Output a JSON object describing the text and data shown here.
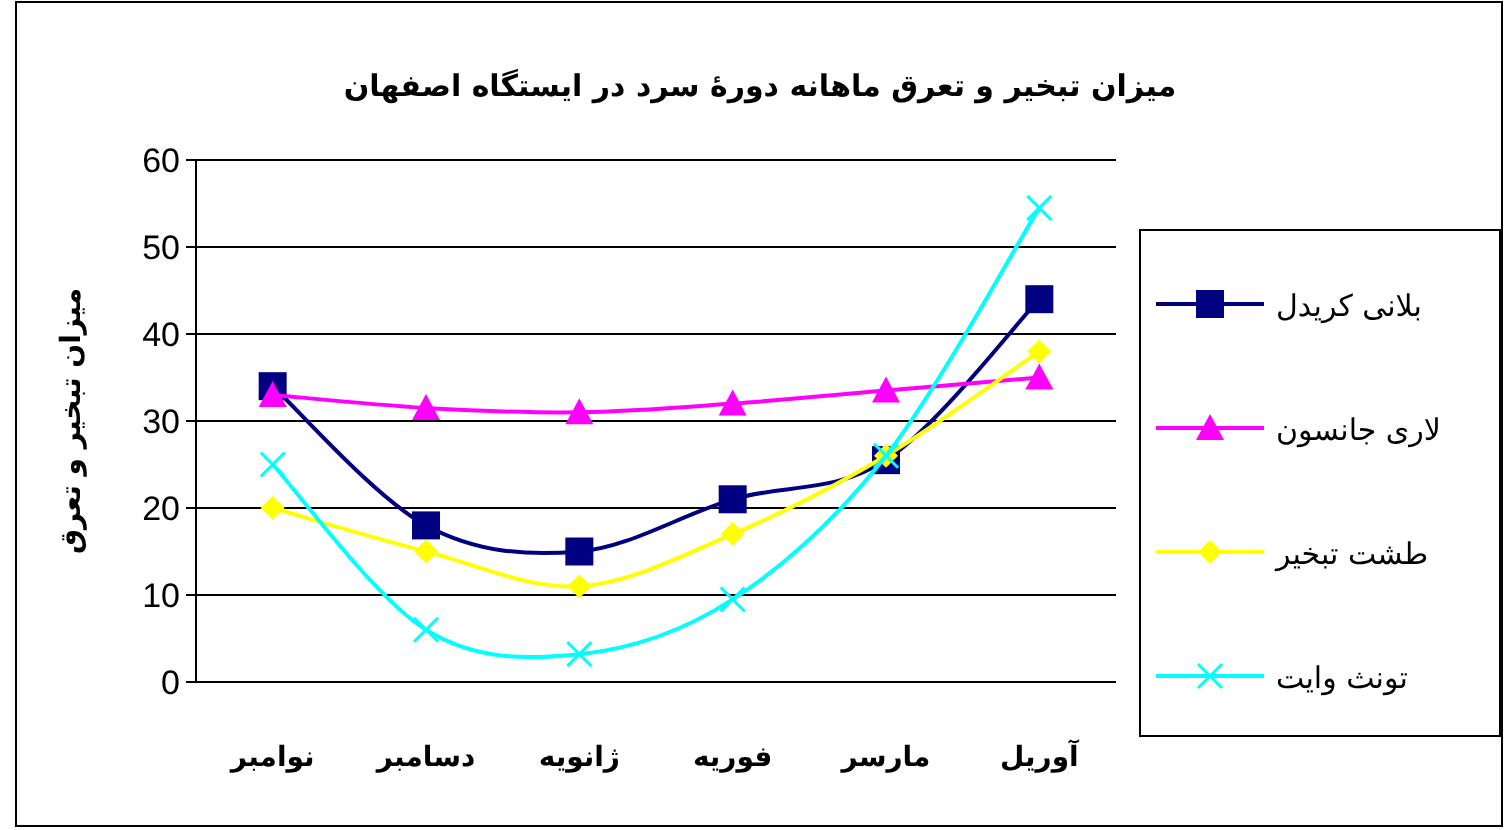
{
  "chart_data": {
    "type": "line",
    "title": "میزان تبخیر و تعرق ماهانه دورهٔ سرد در ایستگاه اصفهان",
    "ylabel": "میزان تبخیر و تعرق",
    "categories": [
      "نوامبر",
      "دسامبر",
      "ژانویه",
      "فوریه",
      "مارسر",
      "آوریل"
    ],
    "series": [
      {
        "name": "بلانی کریدل",
        "color": "#000080",
        "marker": "square",
        "values": [
          34,
          18,
          15,
          21,
          25.5,
          44
        ]
      },
      {
        "name": "لاری جانسون",
        "color": "#ff00ff",
        "marker": "triangle",
        "values": [
          33,
          31.5,
          31,
          32,
          33.5,
          35
        ]
      },
      {
        "name": "طشت تبخیر",
        "color": "#ffff00",
        "marker": "diamond",
        "values": [
          20,
          15,
          11,
          17,
          26,
          38
        ]
      },
      {
        "name": "تونث وایت",
        "color": "#00ffff",
        "marker": "cross",
        "values": [
          25,
          6,
          3.2,
          9.5,
          26,
          54.5
        ]
      }
    ],
    "ylim": [
      0,
      60
    ],
    "yticks": [
      0,
      10,
      20,
      30,
      40,
      50,
      60
    ],
    "grid": "y",
    "legend": "right"
  }
}
